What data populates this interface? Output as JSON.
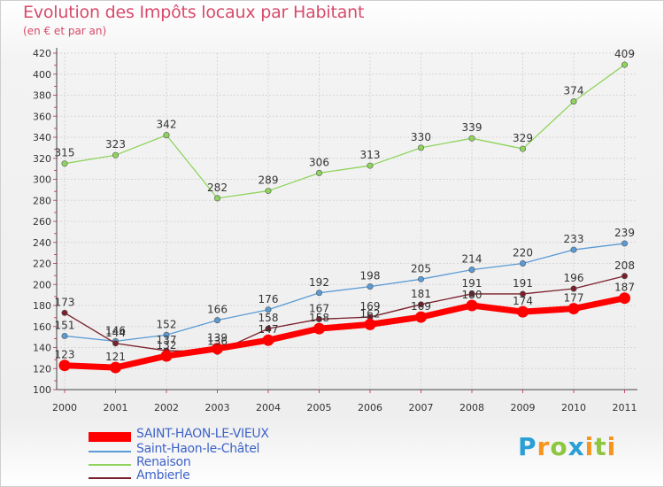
{
  "title": "Evolution des Impôts locaux par Habitant",
  "subtitle": "(en € et par an)",
  "logo": {
    "letters": [
      "P",
      "r",
      "o",
      "x",
      "i",
      "t",
      "i"
    ],
    "colors": [
      "#2a9fd6",
      "#f7941d",
      "#8dc63f",
      "#2a9fd6",
      "#f7941d",
      "#8dc63f",
      "#f7941d"
    ]
  },
  "chart_data": {
    "type": "line",
    "x": [
      2000,
      2001,
      2002,
      2003,
      2004,
      2005,
      2006,
      2007,
      2008,
      2009,
      2010,
      2011
    ],
    "ylim": [
      100,
      420
    ],
    "yticks": [
      100,
      120,
      140,
      160,
      180,
      200,
      220,
      240,
      260,
      280,
      300,
      320,
      340,
      360,
      380,
      400,
      420
    ],
    "grid": true,
    "legend_position": "bottom-left",
    "series": [
      {
        "name": "SAINT-HAON-LE-VIEUX",
        "color": "#ff0000",
        "values": [
          123,
          121,
          132,
          139,
          147,
          158,
          162,
          169,
          180,
          174,
          177,
          187
        ]
      },
      {
        "name": "Saint-Haon-le-Châtel",
        "color": "#5a9bd5",
        "values": [
          151,
          146,
          152,
          166,
          176,
          192,
          198,
          205,
          214,
          220,
          233,
          239
        ]
      },
      {
        "name": "Renaison",
        "color": "#8ed45c",
        "values": [
          315,
          323,
          342,
          282,
          289,
          306,
          313,
          330,
          339,
          329,
          374,
          409
        ]
      },
      {
        "name": "Ambierle",
        "color": "#7a1f2b",
        "values": [
          173,
          144,
          137,
          136,
          158,
          167,
          169,
          181,
          191,
          191,
          196,
          208
        ]
      }
    ]
  }
}
